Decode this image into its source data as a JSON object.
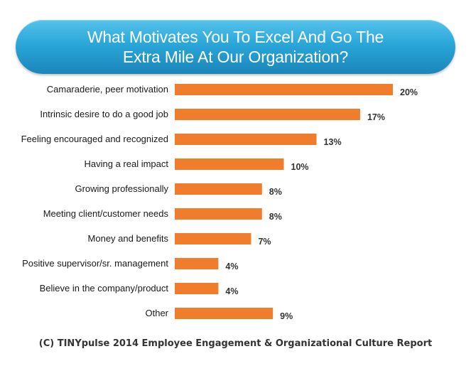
{
  "title": "What Motivates You To Excel And Go The Extra Mile At Our Organization?",
  "footer": "(C) TINYpulse 2014 Employee Engagement & Organizational Culture Report",
  "colors": {
    "bar": "#f07d2b",
    "banner": "#2aa6d8"
  },
  "chart_data": {
    "type": "bar",
    "orientation": "horizontal",
    "title": "What Motivates You To Excel And Go The Extra Mile At Our Organization?",
    "categories": [
      "Camaraderie, peer motivation",
      "Intrinsic desire to do a good job",
      "Feeling encouraged and recognized",
      "Having a real impact",
      "Growing professionally",
      "Meeting client/customer needs",
      "Money and benefits",
      "Positive supervisor/sr. management",
      "Believe in the company/product",
      "Other"
    ],
    "values": [
      20,
      17,
      13,
      10,
      8,
      8,
      7,
      4,
      4,
      9
    ],
    "value_labels": [
      "20%",
      "17%",
      "13%",
      "10%",
      "8%",
      "8%",
      "7%",
      "4%",
      "4%",
      "9%"
    ],
    "xlim": [
      0,
      20
    ],
    "xlabel": "",
    "ylabel": "",
    "grid": false,
    "legend": "none"
  }
}
